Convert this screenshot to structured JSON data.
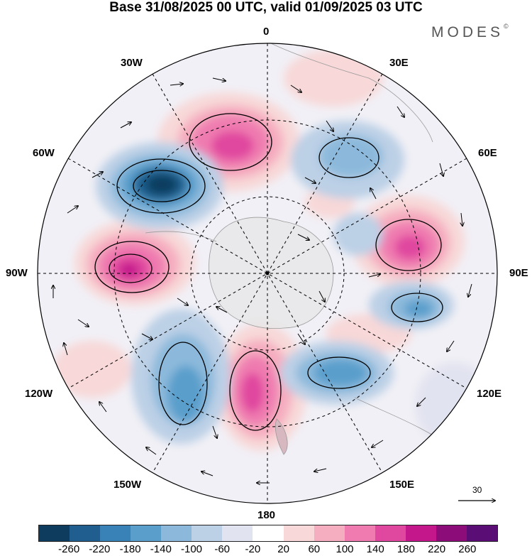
{
  "title": "Base 31/08/2025 00 UTC, valid 01/09/2025 03 UTC",
  "brand": "MODES",
  "brand_mark": "©",
  "longitude_labels": {
    "top": "0",
    "bottom": "180",
    "left": "90W",
    "right": "90E",
    "upper_left_outer": "60W",
    "upper_left_inner": "30W",
    "upper_right_inner": "30E",
    "upper_right_outer": "60E",
    "lower_left_outer": "120W",
    "lower_left_inner": "150W",
    "lower_right_inner": "150E",
    "lower_right_outer": "120E"
  },
  "reference_vector": "30",
  "colorbar": {
    "colors": [
      "#0e3c5e",
      "#1f5e8e",
      "#3982b7",
      "#5a9fcc",
      "#8cb9db",
      "#bcd0e6",
      "#e2e3f0",
      "#ffffff",
      "#f8d8d8",
      "#f5aec0",
      "#ef7bb0",
      "#e0479f",
      "#c4178c",
      "#8c0c7a",
      "#5a0d75"
    ],
    "ticks": [
      "-260",
      "-220",
      "-180",
      "-140",
      "-100",
      "-60",
      "-20",
      "20",
      "60",
      "100",
      "140",
      "180",
      "220",
      "260"
    ]
  }
}
